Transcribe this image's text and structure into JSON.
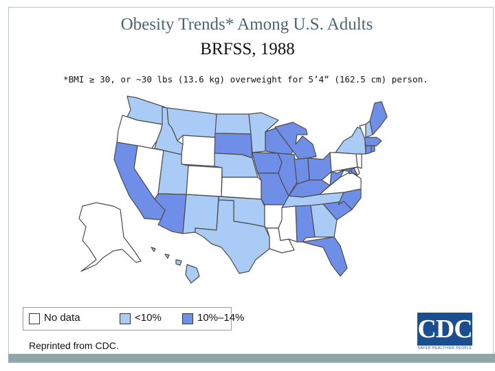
{
  "title": {
    "line1": "Obesity Trends* Among U.S. Adults",
    "line2": "BRFSS, 1988"
  },
  "subtitle": "*BMI ≥ 30, or ~30 lbs (13.6 kg) overweight for 5’4” (162.5 cm) person.",
  "colors": {
    "no_data": "#ffffff",
    "lt10": "#a9cbf5",
    "10_14": "#6f8ee8",
    "border": "#4a4a4a"
  },
  "legend": {
    "no_data": "No data",
    "lt10": "<10%",
    "range_10_14": "10%–14%"
  },
  "credit": "Reprinted from CDC.",
  "logo": {
    "text": "CDC",
    "tagline": "SAFER·HEALTHIER·PEOPLE"
  },
  "states": {
    "WA": "lt10",
    "OR": "no_data",
    "CA": "10_14",
    "NV": "no_data",
    "ID": "lt10",
    "MT": "lt10",
    "WY": "no_data",
    "UT": "lt10",
    "AZ": "10_14",
    "CO": "no_data",
    "NM": "lt10",
    "ND": "lt10",
    "SD": "10_14",
    "NE": "lt10",
    "KS": "no_data",
    "OK": "lt10",
    "TX": "lt10",
    "MN": "lt10",
    "IA": "10_14",
    "MO": "10_14",
    "AR": "no_data",
    "LA": "no_data",
    "WI": "10_14",
    "IL": "10_14",
    "MI": "10_14",
    "IN": "10_14",
    "OH": "10_14",
    "KY": "10_14",
    "TN": "lt10",
    "MS": "no_data",
    "AL": "10_14",
    "GA": "lt10",
    "FL": "10_14",
    "SC": "10_14",
    "NC": "10_14",
    "VA": "no_data",
    "WV": "10_14",
    "PA": "no_data",
    "NY": "lt10",
    "ME": "10_14",
    "VT": "no_data",
    "NH": "lt10",
    "MA": "10_14",
    "CT": "10_14",
    "RI": "10_14",
    "NJ": "no_data",
    "DE": "no_data",
    "MD": "10_14",
    "DC": "10_14",
    "AK": "no_data",
    "HI": "lt10"
  }
}
